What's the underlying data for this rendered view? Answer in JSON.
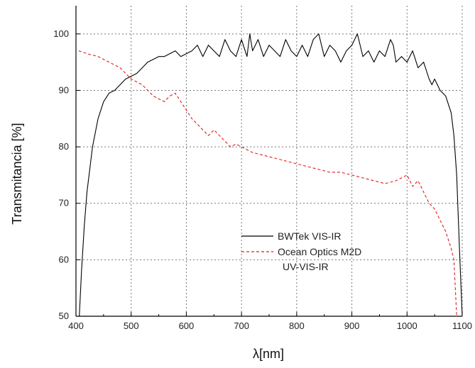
{
  "chart_data": {
    "type": "line",
    "title": "",
    "xlabel": "λ[nm]",
    "ylabel": "Transmitancia [%]",
    "xlim": [
      400,
      1100
    ],
    "ylim": [
      50,
      105
    ],
    "xticks": [
      400,
      500,
      600,
      700,
      800,
      900,
      1000,
      1100
    ],
    "yticks": [
      50,
      60,
      70,
      80,
      90,
      100
    ],
    "grid": true,
    "legend_position": "center-right",
    "series": [
      {
        "name": "BWTek VIS-IR",
        "color": "#000000",
        "line_style": "solid",
        "x": [
          406,
          410,
          415,
          420,
          425,
          430,
          440,
          450,
          460,
          470,
          480,
          490,
          500,
          510,
          520,
          530,
          540,
          550,
          560,
          570,
          580,
          590,
          600,
          610,
          620,
          630,
          640,
          650,
          660,
          670,
          680,
          690,
          700,
          710,
          715,
          720,
          730,
          740,
          750,
          760,
          770,
          780,
          790,
          800,
          810,
          820,
          830,
          840,
          850,
          860,
          870,
          880,
          890,
          900,
          910,
          920,
          930,
          940,
          950,
          960,
          970,
          975,
          980,
          990,
          1000,
          1010,
          1020,
          1030,
          1040,
          1045,
          1050,
          1060,
          1070,
          1080,
          1085,
          1090,
          1095,
          1100
        ],
        "y": [
          50,
          58,
          66,
          72,
          76,
          80,
          85,
          88,
          89.5,
          90,
          91,
          92,
          92.5,
          93,
          94,
          95,
          95.5,
          96,
          96,
          96.5,
          97,
          96,
          96.5,
          97,
          98,
          96,
          98,
          97,
          96,
          99,
          97,
          96,
          99,
          96,
          100,
          97,
          99,
          96,
          98,
          97,
          96,
          99,
          97,
          96,
          98,
          96,
          99,
          100,
          96,
          98,
          97,
          95,
          97,
          98,
          100,
          96,
          97,
          95,
          97,
          96,
          99,
          98,
          95,
          96,
          95,
          97,
          94,
          95,
          92,
          91,
          92,
          90,
          89,
          86,
          82,
          75,
          62,
          50
        ]
      },
      {
        "name": "Ocean Optics M2D",
        "name_line2": "UV-VIS-IR",
        "color": "#e31a1c",
        "line_style": "dashed",
        "x": [
          405,
          420,
          440,
          460,
          480,
          500,
          520,
          540,
          560,
          570,
          580,
          590,
          600,
          610,
          620,
          640,
          650,
          660,
          670,
          680,
          690,
          700,
          720,
          740,
          760,
          780,
          800,
          820,
          840,
          860,
          880,
          900,
          920,
          940,
          960,
          980,
          1000,
          1010,
          1020,
          1030,
          1040,
          1050,
          1060,
          1070,
          1080,
          1085,
          1090
        ],
        "y": [
          97,
          96.5,
          96,
          95,
          94,
          92,
          91,
          89,
          88,
          89,
          89.5,
          88,
          86.5,
          85,
          84,
          82,
          83,
          82,
          81,
          80,
          80.5,
          80,
          79,
          78.5,
          78,
          77.5,
          77,
          76.5,
          76,
          75.5,
          75.5,
          75,
          74.5,
          74,
          73.5,
          74,
          75,
          73,
          74,
          72,
          70,
          69,
          67,
          65,
          62,
          60,
          50
        ]
      }
    ]
  }
}
